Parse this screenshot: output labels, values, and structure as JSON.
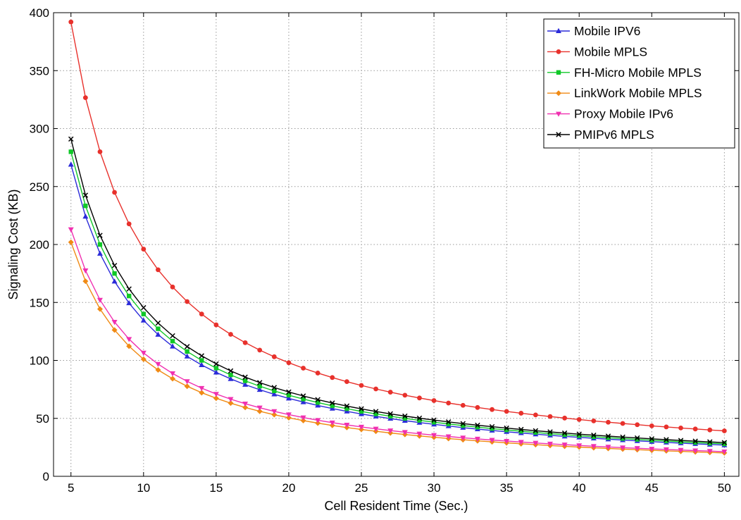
{
  "chart_data": {
    "type": "line",
    "title": "",
    "xlabel": "Cell Resident Time (Sec.)",
    "ylabel": "Signaling Cost (KB)",
    "xlim": [
      3.8,
      51
    ],
    "ylim": [
      0,
      400
    ],
    "xticks": [
      5,
      10,
      15,
      20,
      25,
      30,
      35,
      40,
      45,
      50
    ],
    "yticks": [
      0,
      50,
      100,
      150,
      200,
      250,
      300,
      350,
      400
    ],
    "grid": true,
    "grid_style": "dotted",
    "legend_position": "top-right",
    "x": [
      5,
      6,
      7,
      8,
      9,
      10,
      11,
      12,
      13,
      14,
      15,
      16,
      17,
      18,
      19,
      20,
      21,
      22,
      23,
      24,
      25,
      26,
      27,
      28,
      29,
      30,
      31,
      32,
      33,
      34,
      35,
      36,
      37,
      38,
      39,
      40,
      41,
      42,
      43,
      44,
      45,
      46,
      47,
      48,
      49,
      50
    ],
    "series": [
      {
        "name": "Mobile IPV6",
        "color": "#2b2bd9",
        "marker": "triangle-up",
        "c": 1345
      },
      {
        "name": "Mobile MPLS",
        "color": "#e8312c",
        "marker": "circle",
        "c": 1960
      },
      {
        "name": "FH-Micro Mobile MPLS",
        "color": "#10c828",
        "marker": "square",
        "c": 1400
      },
      {
        "name": "LinkWork Mobile MPLS",
        "color": "#f08a14",
        "marker": "diamond",
        "c": 1010
      },
      {
        "name": "Proxy Mobile IPv6",
        "color": "#f030b0",
        "marker": "triangle-down",
        "c": 1065
      },
      {
        "name": "PMIPv6 MPLS",
        "color": "#000000",
        "marker": "x",
        "c": 1455
      }
    ],
    "series_rule": "y = c / x"
  }
}
